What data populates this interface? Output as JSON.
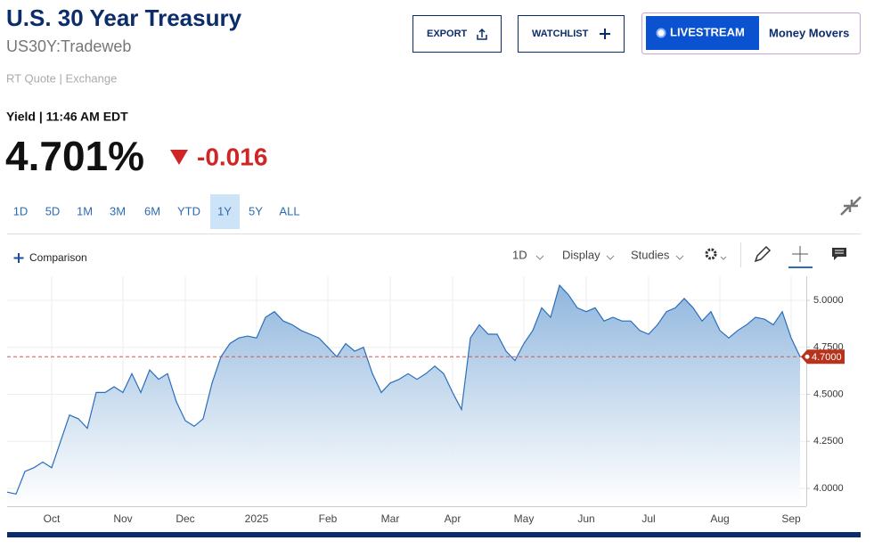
{
  "header": {
    "title": "U.S. 30 Year Treasury",
    "symbol": "US30Y:Tradeweb",
    "source": "RT Quote | Exchange"
  },
  "buttons": [
    "EXPORT",
    "WATCHLIST"
  ],
  "livestream": {
    "label": "LIVESTREAM",
    "show": "Money Movers"
  },
  "quote": {
    "label": "Yield | 11:46 AM EDT",
    "last": "4.701%",
    "change": "-0.016"
  },
  "ranges": [
    "1D",
    "5D",
    "1M",
    "3M",
    "6M",
    "YTD",
    "1Y",
    "5Y",
    "ALL"
  ],
  "active_range": 6,
  "toolbar": {
    "comparison": "Comparison",
    "interval": "1D",
    "display": "Display",
    "studies": "Studies"
  },
  "chart_data": {
    "type": "area",
    "color": "#2a6ebb",
    "categories": [
      null,
      null,
      null,
      null,
      null,
      "Oct",
      null,
      null,
      null,
      null,
      null,
      null,
      null,
      "Nov",
      null,
      null,
      null,
      null,
      null,
      null,
      "Dec",
      null,
      null,
      null,
      null,
      null,
      null,
      null,
      "2025",
      null,
      null,
      null,
      null,
      null,
      null,
      null,
      "Feb",
      null,
      null,
      null,
      null,
      null,
      null,
      "Mar",
      null,
      null,
      null,
      null,
      null,
      null,
      "Apr",
      null,
      null,
      null,
      null,
      null,
      null,
      null,
      "May",
      null,
      null,
      null,
      null,
      null,
      null,
      "Jun",
      null,
      null,
      null,
      null,
      null,
      null,
      "Jul",
      null,
      null,
      null,
      null,
      null,
      null,
      null,
      "Aug",
      null,
      null,
      null,
      null,
      null,
      null,
      null,
      "Sep",
      null
    ],
    "values": [
      3.98,
      3.97,
      4.09,
      4.11,
      4.14,
      4.11,
      4.25,
      4.39,
      4.37,
      4.32,
      4.51,
      4.51,
      4.54,
      4.51,
      4.61,
      4.51,
      4.63,
      4.58,
      4.61,
      4.46,
      4.36,
      4.33,
      4.37,
      4.56,
      4.7,
      4.77,
      4.8,
      4.81,
      4.8,
      4.91,
      4.94,
      4.89,
      4.87,
      4.84,
      4.82,
      4.8,
      4.75,
      4.7,
      4.77,
      4.73,
      4.75,
      4.61,
      4.51,
      4.56,
      4.58,
      4.61,
      4.58,
      4.61,
      4.65,
      4.61,
      4.51,
      4.42,
      4.8,
      4.87,
      4.82,
      4.82,
      4.73,
      4.68,
      4.77,
      4.84,
      4.96,
      4.91,
      5.08,
      5.03,
      4.96,
      4.94,
      4.96,
      4.89,
      4.91,
      4.89,
      4.89,
      4.84,
      4.82,
      4.87,
      4.94,
      4.96,
      5.01,
      4.96,
      4.89,
      4.94,
      4.84,
      4.8,
      4.84,
      4.87,
      4.91,
      4.9,
      4.87,
      4.94,
      4.8,
      4.7
    ],
    "ylim": [
      3.905,
      5.128
    ],
    "yticks": [
      {
        "value": 4,
        "label": "4.0000"
      },
      {
        "value": 4.25,
        "label": "4.2500"
      },
      {
        "value": 4.5,
        "label": "4.5000"
      },
      {
        "value": 4.75,
        "label": "4.7500"
      },
      {
        "value": 5,
        "label": "5.0000"
      }
    ],
    "current": {
      "value": 4.7,
      "label": "4.7000"
    },
    "grid": true
  }
}
